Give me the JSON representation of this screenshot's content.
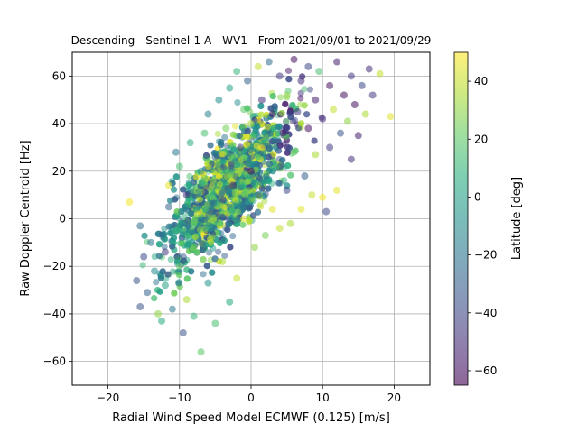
{
  "chart_data": {
    "type": "scatter",
    "title": "Descending - Sentinel-1 A - WV1 - From 2021/09/01 to 2021/09/29",
    "xlabel": "Radial Wind Speed Model ECMWF (0.125) [m/s]",
    "ylabel": "Raw Doppler Centroid [Hz]",
    "xlim": [
      -25,
      25
    ],
    "ylim": [
      -70,
      70
    ],
    "xticks": [
      -20,
      -10,
      0,
      10,
      20
    ],
    "xtick_labels": [
      "−20",
      "−10",
      "0",
      "10",
      "20"
    ],
    "yticks": [
      -60,
      -40,
      -20,
      0,
      20,
      40,
      60
    ],
    "ytick_labels": [
      "−60",
      "−40",
      "−20",
      "0",
      "20",
      "40",
      "60"
    ],
    "grid": true,
    "marker_alpha": 0.55,
    "colormap": "viridis",
    "colorbar": {
      "label": "Latitude [deg]",
      "range": [
        -65,
        50
      ],
      "ticks": [
        -60,
        -40,
        -20,
        0,
        20,
        40
      ],
      "tick_labels": [
        "−60",
        "−40",
        "−20",
        "0",
        "20",
        "40"
      ]
    },
    "colors": {
      "viridis_stops": [
        "#440154",
        "#472c7a",
        "#3b528b",
        "#2c728e",
        "#21918c",
        "#28ae80",
        "#5ec962",
        "#addc30",
        "#fde725"
      ]
    },
    "points": [
      {
        "x": -17,
        "y": 7,
        "lat": 48
      },
      {
        "x": -16,
        "y": -26,
        "lat": -35
      },
      {
        "x": -15.5,
        "y": -3,
        "lat": -25
      },
      {
        "x": -15,
        "y": -16,
        "lat": -40
      },
      {
        "x": -14.5,
        "y": -31,
        "lat": -30
      },
      {
        "x": -15.5,
        "y": -37,
        "lat": -35
      },
      {
        "x": -14,
        "y": -10,
        "lat": -20
      },
      {
        "x": -13.5,
        "y": -22,
        "lat": -10
      },
      {
        "x": -13,
        "y": -40,
        "lat": 30
      },
      {
        "x": -12.5,
        "y": -43,
        "lat": 5
      },
      {
        "x": -12,
        "y": -14,
        "lat": -45
      },
      {
        "x": -12,
        "y": -28,
        "lat": 0
      },
      {
        "x": -11.5,
        "y": 5,
        "lat": -30
      },
      {
        "x": -11.5,
        "y": 14,
        "lat": 45
      },
      {
        "x": -11,
        "y": -38,
        "lat": -20
      },
      {
        "x": -10.5,
        "y": 28,
        "lat": -20
      },
      {
        "x": -10.5,
        "y": -5,
        "lat": 10
      },
      {
        "x": -10,
        "y": 22,
        "lat": 15
      },
      {
        "x": -10,
        "y": -20,
        "lat": 20
      },
      {
        "x": -9.5,
        "y": -48,
        "lat": -35
      },
      {
        "x": -9,
        "y": -34,
        "lat": 35
      },
      {
        "x": -9,
        "y": 10,
        "lat": -50
      },
      {
        "x": -8.5,
        "y": 32,
        "lat": 5
      },
      {
        "x": -8,
        "y": -12,
        "lat": 25
      },
      {
        "x": -8,
        "y": -41,
        "lat": 10
      },
      {
        "x": -7.5,
        "y": 2,
        "lat": 40
      },
      {
        "x": -7,
        "y": 20,
        "lat": -10
      },
      {
        "x": -7,
        "y": -56,
        "lat": 20
      },
      {
        "x": -6.5,
        "y": 36,
        "lat": 15
      },
      {
        "x": -6,
        "y": -27,
        "lat": -5
      },
      {
        "x": -6,
        "y": 44,
        "lat": -15
      },
      {
        "x": -5.5,
        "y": -8,
        "lat": 30
      },
      {
        "x": -5,
        "y": 26,
        "lat": -25
      },
      {
        "x": -5,
        "y": -44,
        "lat": 15
      },
      {
        "x": -4.5,
        "y": 50,
        "lat": -10
      },
      {
        "x": -4,
        "y": 8,
        "lat": -40
      },
      {
        "x": -4,
        "y": -18,
        "lat": 35
      },
      {
        "x": -3.5,
        "y": 38,
        "lat": 25
      },
      {
        "x": -3,
        "y": -35,
        "lat": 5
      },
      {
        "x": -3,
        "y": 55,
        "lat": 0
      },
      {
        "x": -2.5,
        "y": 14,
        "lat": -55
      },
      {
        "x": -2,
        "y": 62,
        "lat": 10
      },
      {
        "x": -2,
        "y": -25,
        "lat": 40
      },
      {
        "x": -1.5,
        "y": 30,
        "lat": -45
      },
      {
        "x": -1,
        "y": 46,
        "lat": 20
      },
      {
        "x": -1,
        "y": 0,
        "lat": 45
      },
      {
        "x": -0.5,
        "y": 58,
        "lat": -30
      },
      {
        "x": 0,
        "y": 20,
        "lat": -60
      },
      {
        "x": 0,
        "y": 40,
        "lat": 35
      },
      {
        "x": 0.5,
        "y": -12,
        "lat": 30
      },
      {
        "x": 1,
        "y": 64,
        "lat": 40
      },
      {
        "x": 1,
        "y": 10,
        "lat": -35
      },
      {
        "x": 1.5,
        "y": 50,
        "lat": -50
      },
      {
        "x": 2,
        "y": 32,
        "lat": 0
      },
      {
        "x": 2,
        "y": -7,
        "lat": 25
      },
      {
        "x": 2.5,
        "y": 66,
        "lat": -25
      },
      {
        "x": 3,
        "y": 4,
        "lat": 45
      },
      {
        "x": 3,
        "y": 44,
        "lat": -60
      },
      {
        "x": 3.5,
        "y": 22,
        "lat": 10
      },
      {
        "x": 4,
        "y": 60,
        "lat": -45
      },
      {
        "x": 4,
        "y": -4,
        "lat": 40
      },
      {
        "x": 4.5,
        "y": 36,
        "lat": -55
      },
      {
        "x": 5,
        "y": 12,
        "lat": -40
      },
      {
        "x": 5,
        "y": 52,
        "lat": 30
      },
      {
        "x": 5.5,
        "y": -2,
        "lat": 35
      },
      {
        "x": 6,
        "y": 67,
        "lat": -60
      },
      {
        "x": 6,
        "y": 28,
        "lat": 20
      },
      {
        "x": 6.5,
        "y": 45,
        "lat": -45
      },
      {
        "x": 7,
        "y": 4,
        "lat": 45
      },
      {
        "x": 7,
        "y": 58,
        "lat": -50
      },
      {
        "x": 7.5,
        "y": 18,
        "lat": -30
      },
      {
        "x": 8,
        "y": 38,
        "lat": -60
      },
      {
        "x": 8,
        "y": 64,
        "lat": -40
      },
      {
        "x": 8.5,
        "y": 10,
        "lat": 40
      },
      {
        "x": 9,
        "y": 50,
        "lat": -55
      },
      {
        "x": 9,
        "y": 27,
        "lat": 35
      },
      {
        "x": 9.5,
        "y": 62,
        "lat": 15
      },
      {
        "x": 10,
        "y": 42,
        "lat": -50
      },
      {
        "x": 10,
        "y": 9,
        "lat": 48
      },
      {
        "x": 10.5,
        "y": 3,
        "lat": -40
      },
      {
        "x": 11,
        "y": 56,
        "lat": -60
      },
      {
        "x": 11,
        "y": 30,
        "lat": -45
      },
      {
        "x": 11.5,
        "y": 46,
        "lat": 40
      },
      {
        "x": 12,
        "y": 12,
        "lat": 45
      },
      {
        "x": 12,
        "y": 66,
        "lat": -55
      },
      {
        "x": 12.5,
        "y": 36,
        "lat": -35
      },
      {
        "x": 13,
        "y": 52,
        "lat": -60
      },
      {
        "x": 13.5,
        "y": 41,
        "lat": 30
      },
      {
        "x": 14,
        "y": 25,
        "lat": -50
      },
      {
        "x": 14,
        "y": 60,
        "lat": -45
      },
      {
        "x": 14.5,
        "y": 48,
        "lat": -60
      },
      {
        "x": 15,
        "y": 35,
        "lat": -55
      },
      {
        "x": 15.5,
        "y": 56,
        "lat": -40
      },
      {
        "x": 16,
        "y": 44,
        "lat": 35
      },
      {
        "x": 16.5,
        "y": 63,
        "lat": -50
      },
      {
        "x": 17,
        "y": 52,
        "lat": -45
      },
      {
        "x": 18,
        "y": 61,
        "lat": 40
      },
      {
        "x": 19.5,
        "y": 43,
        "lat": 45
      }
    ]
  }
}
